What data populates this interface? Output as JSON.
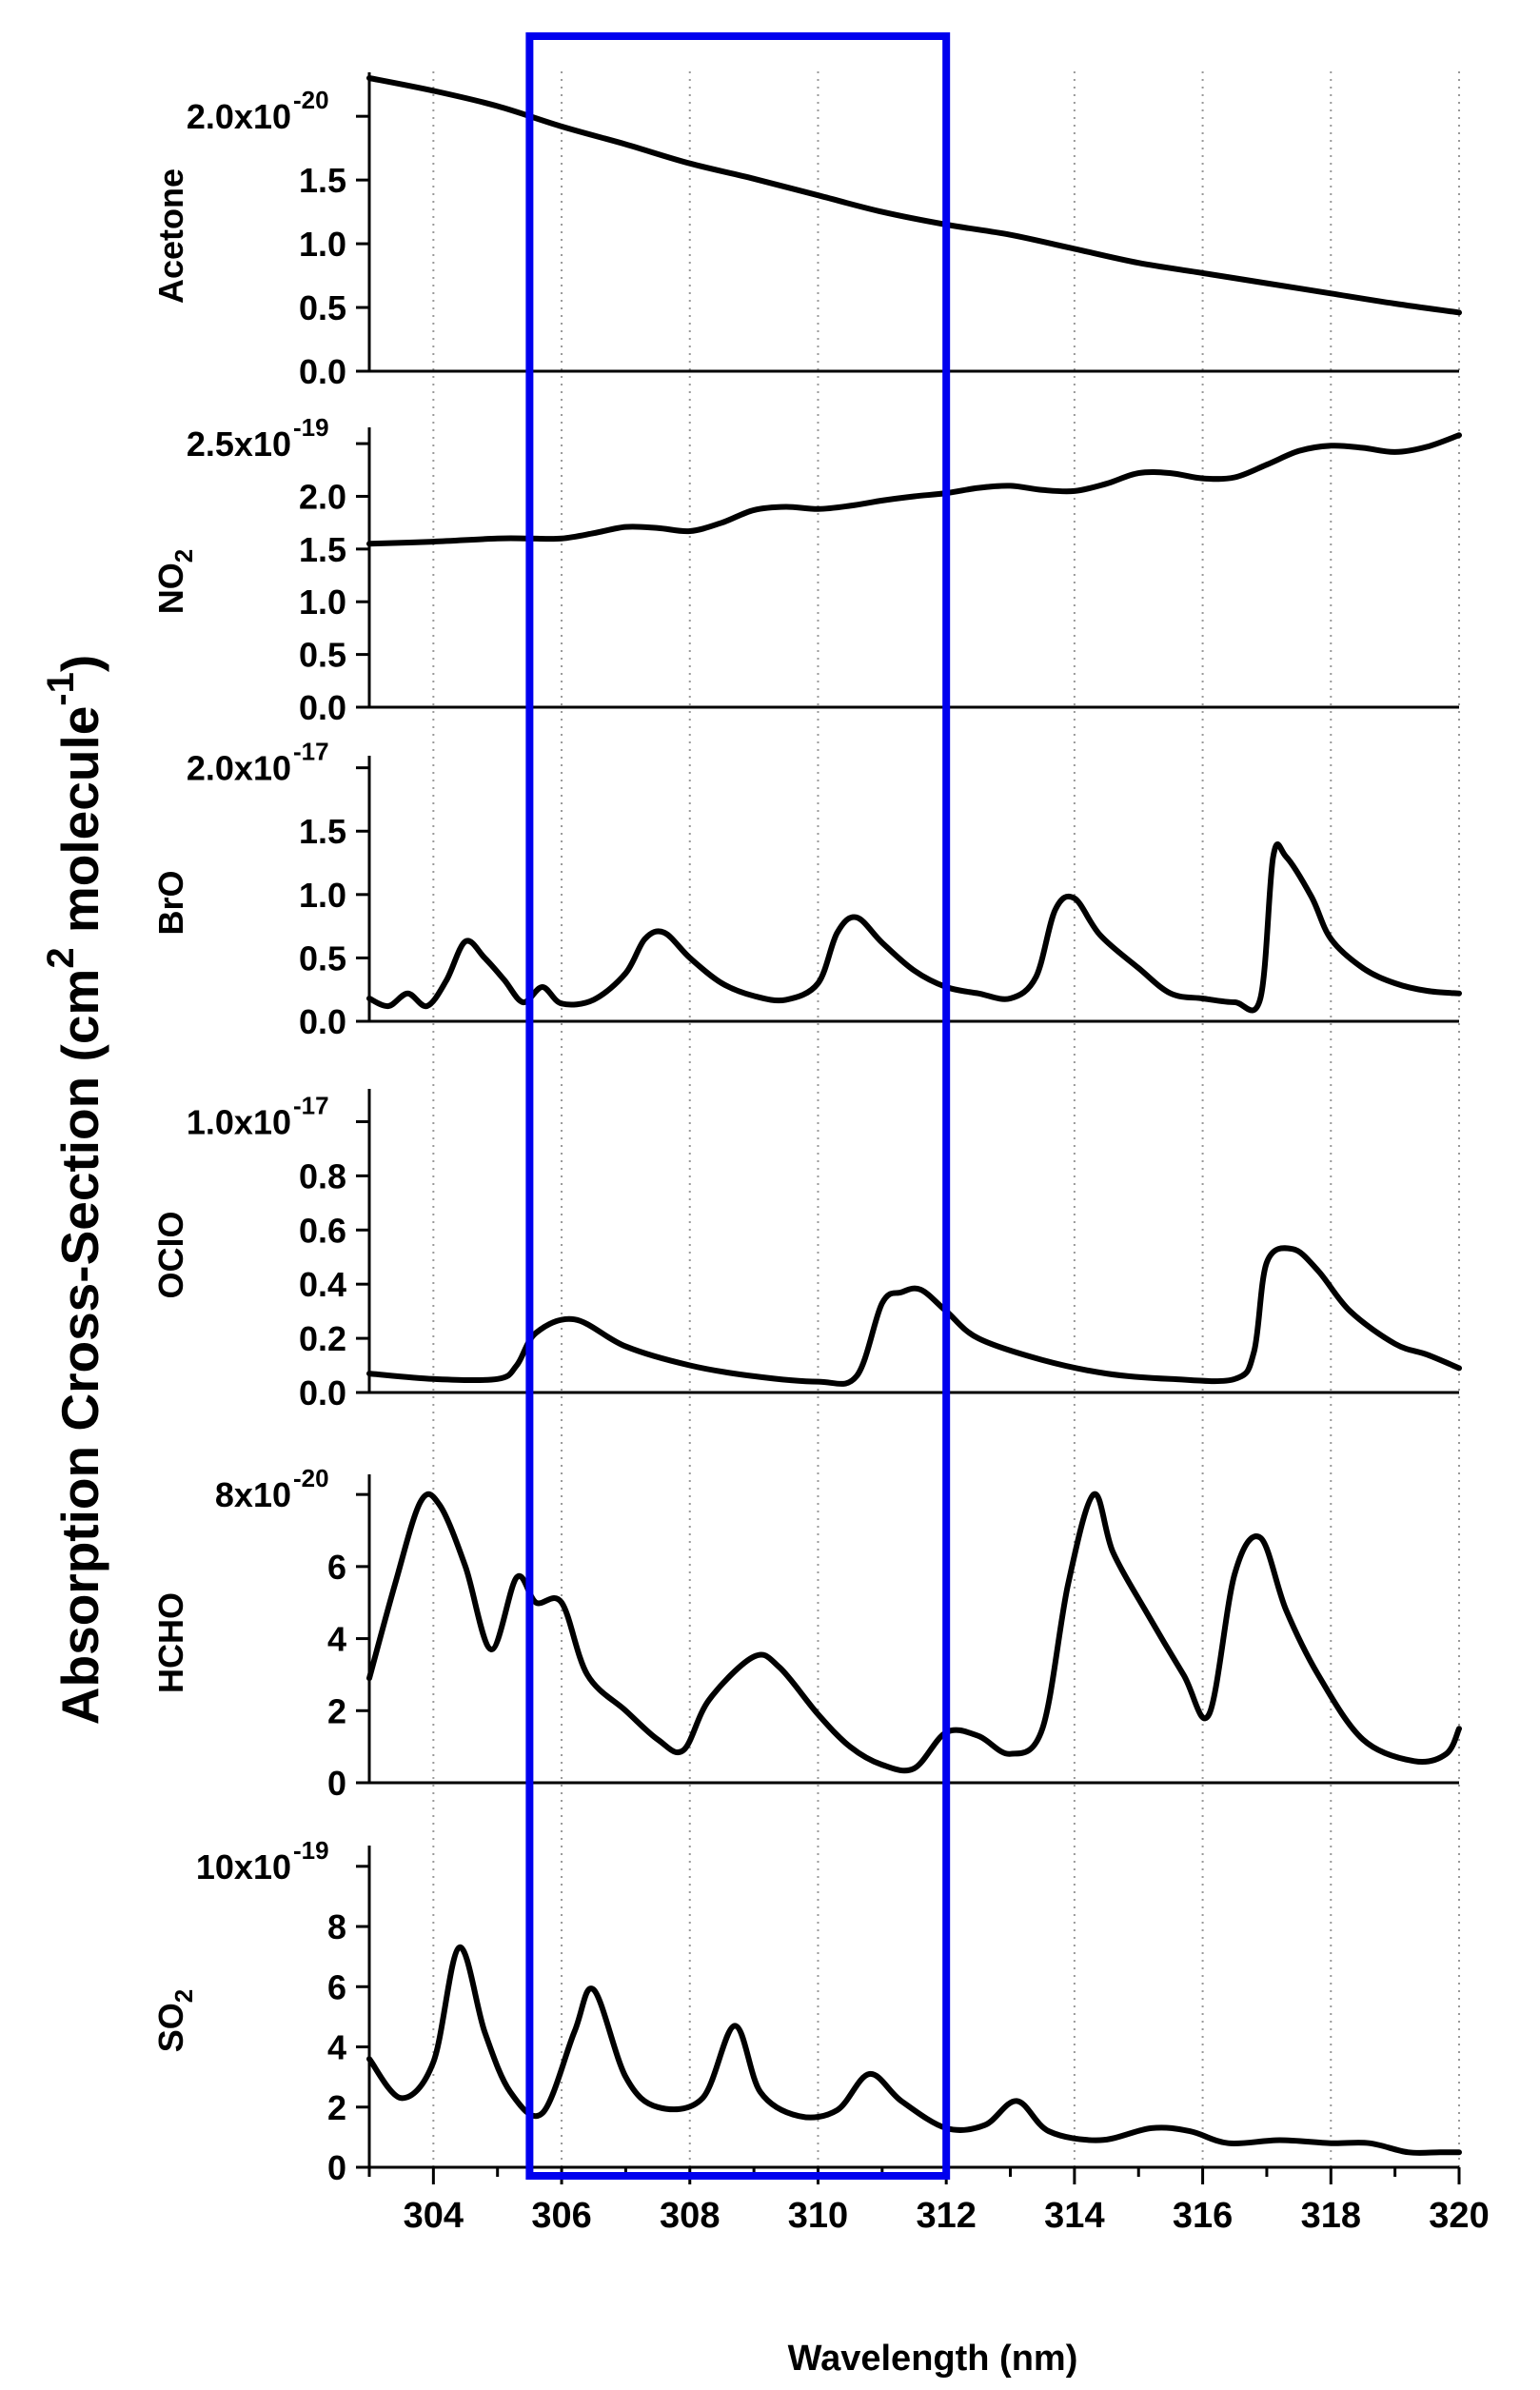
{
  "figure": {
    "ylabel": "Absorption Cross-Section (cm",
    "ylabel_sup1": "2",
    "ylabel_mid": " molecule",
    "ylabel_sup2": "-1",
    "ylabel_end": ")",
    "xlabel": "Wavelength (nm)"
  },
  "chart_data": {
    "type": "line",
    "title": "",
    "xlabel": "Wavelength (nm)",
    "ylabel": "Absorption Cross-Section (cm2 molecule-1)",
    "xlim": [
      303,
      320
    ],
    "xticks": [
      304,
      306,
      308,
      310,
      312,
      314,
      316,
      318,
      320
    ],
    "xtick_labels": [
      "304",
      "306",
      "308",
      "310",
      "312",
      "314",
      "316",
      "318",
      "320"
    ],
    "grid": "vertical dotted",
    "highlight_box": {
      "x_range": [
        305.5,
        312.0
      ],
      "color": "#0000ee"
    },
    "series": [
      {
        "name": "Acetone",
        "label_main": "Acetone",
        "label_sub": "",
        "ylim": [
          0,
          2.3
        ],
        "yticks": [
          0,
          0.5,
          1.0,
          1.5,
          2.0
        ],
        "ytick_labels": [
          "0.0",
          "0.5",
          "1.0",
          "1.5",
          "2.0x10"
        ],
        "exponent": "-20",
        "points": [
          [
            303,
            2.3
          ],
          [
            304,
            2.2
          ],
          [
            305,
            2.08
          ],
          [
            306,
            1.92
          ],
          [
            307,
            1.78
          ],
          [
            308,
            1.63
          ],
          [
            309,
            1.51
          ],
          [
            310,
            1.38
          ],
          [
            311,
            1.25
          ],
          [
            312,
            1.15
          ],
          [
            313,
            1.07
          ],
          [
            314,
            0.96
          ],
          [
            315,
            0.85
          ],
          [
            316,
            0.77
          ],
          [
            317,
            0.69
          ],
          [
            318,
            0.61
          ],
          [
            319,
            0.53
          ],
          [
            320,
            0.46
          ]
        ]
      },
      {
        "name": "NO2",
        "label_main": "NO",
        "label_sub": "2",
        "ylim": [
          0,
          2.6
        ],
        "yticks": [
          0,
          0.5,
          1.0,
          1.5,
          2.0,
          2.5
        ],
        "ytick_labels": [
          "0.0",
          "0.5",
          "1.0",
          "1.5",
          "2.0",
          "2.5x10"
        ],
        "exponent": "-19",
        "points": [
          [
            303,
            1.55
          ],
          [
            304,
            1.57
          ],
          [
            305,
            1.6
          ],
          [
            305.5,
            1.6
          ],
          [
            306,
            1.6
          ],
          [
            306.5,
            1.65
          ],
          [
            307,
            1.71
          ],
          [
            307.5,
            1.7
          ],
          [
            308,
            1.67
          ],
          [
            308.5,
            1.75
          ],
          [
            309,
            1.87
          ],
          [
            309.5,
            1.9
          ],
          [
            310,
            1.88
          ],
          [
            310.5,
            1.91
          ],
          [
            311,
            1.96
          ],
          [
            311.5,
            2.0
          ],
          [
            312,
            2.03
          ],
          [
            312.5,
            2.08
          ],
          [
            313,
            2.1
          ],
          [
            313.5,
            2.06
          ],
          [
            314,
            2.05
          ],
          [
            314.5,
            2.12
          ],
          [
            315,
            2.22
          ],
          [
            315.5,
            2.22
          ],
          [
            316,
            2.17
          ],
          [
            316.5,
            2.18
          ],
          [
            317,
            2.3
          ],
          [
            317.5,
            2.43
          ],
          [
            318,
            2.48
          ],
          [
            318.5,
            2.46
          ],
          [
            319,
            2.42
          ],
          [
            319.5,
            2.47
          ],
          [
            320,
            2.58
          ]
        ]
      },
      {
        "name": "BrO",
        "label_main": "BrO",
        "label_sub": "",
        "ylim": [
          0,
          2.05
        ],
        "yticks": [
          0,
          0.5,
          1.0,
          1.5,
          2.0
        ],
        "ytick_labels": [
          "0.0",
          "0.5",
          "1.0",
          "1.5",
          "2.0x10"
        ],
        "exponent": "-17",
        "points": [
          [
            303,
            0.18
          ],
          [
            303.3,
            0.12
          ],
          [
            303.6,
            0.22
          ],
          [
            303.9,
            0.12
          ],
          [
            304.2,
            0.32
          ],
          [
            304.5,
            0.63
          ],
          [
            304.8,
            0.5
          ],
          [
            305.1,
            0.33
          ],
          [
            305.4,
            0.15
          ],
          [
            305.7,
            0.27
          ],
          [
            306,
            0.14
          ],
          [
            306.5,
            0.17
          ],
          [
            307,
            0.38
          ],
          [
            307.3,
            0.65
          ],
          [
            307.6,
            0.7
          ],
          [
            308,
            0.5
          ],
          [
            308.5,
            0.3
          ],
          [
            309,
            0.2
          ],
          [
            309.5,
            0.17
          ],
          [
            310,
            0.3
          ],
          [
            310.3,
            0.7
          ],
          [
            310.6,
            0.82
          ],
          [
            311,
            0.62
          ],
          [
            311.5,
            0.4
          ],
          [
            312,
            0.27
          ],
          [
            312.5,
            0.22
          ],
          [
            313,
            0.18
          ],
          [
            313.4,
            0.35
          ],
          [
            313.7,
            0.88
          ],
          [
            314,
            0.97
          ],
          [
            314.4,
            0.68
          ],
          [
            315,
            0.42
          ],
          [
            315.5,
            0.22
          ],
          [
            316,
            0.18
          ],
          [
            316.5,
            0.15
          ],
          [
            316.9,
            0.18
          ],
          [
            317.1,
            1.3
          ],
          [
            317.3,
            1.3
          ],
          [
            317.7,
            0.98
          ],
          [
            318,
            0.65
          ],
          [
            318.5,
            0.42
          ],
          [
            319,
            0.3
          ],
          [
            319.5,
            0.24
          ],
          [
            320,
            0.22
          ]
        ]
      },
      {
        "name": "OClO",
        "label_main": "OClO",
        "label_sub": "",
        "ylim": [
          0,
          1.1
        ],
        "yticks": [
          0,
          0.2,
          0.4,
          0.6,
          0.8,
          1.0
        ],
        "ytick_labels": [
          "0.0",
          "0.2",
          "0.4",
          "0.6",
          "0.8",
          "1.0x10"
        ],
        "exponent": "-17",
        "points": [
          [
            303,
            0.07
          ],
          [
            304,
            0.05
          ],
          [
            305,
            0.05
          ],
          [
            305.3,
            0.1
          ],
          [
            305.6,
            0.22
          ],
          [
            306.2,
            0.27
          ],
          [
            307,
            0.17
          ],
          [
            308,
            0.1
          ],
          [
            309,
            0.06
          ],
          [
            310,
            0.04
          ],
          [
            310.6,
            0.06
          ],
          [
            311,
            0.33
          ],
          [
            311.3,
            0.37
          ],
          [
            311.6,
            0.38
          ],
          [
            312,
            0.3
          ],
          [
            312.5,
            0.2
          ],
          [
            313.5,
            0.12
          ],
          [
            314.5,
            0.07
          ],
          [
            315.5,
            0.05
          ],
          [
            316.5,
            0.05
          ],
          [
            316.8,
            0.15
          ],
          [
            317,
            0.48
          ],
          [
            317.4,
            0.53
          ],
          [
            317.8,
            0.45
          ],
          [
            318.3,
            0.3
          ],
          [
            319,
            0.18
          ],
          [
            319.5,
            0.14
          ],
          [
            320,
            0.09
          ]
        ]
      },
      {
        "name": "HCHO",
        "label_main": "HCHO",
        "label_sub": "",
        "ylim": [
          0,
          8.4
        ],
        "yticks": [
          0,
          2,
          4,
          6,
          8
        ],
        "ytick_labels": [
          "0",
          "2",
          "4",
          "6",
          "8x10"
        ],
        "exponent": "-20",
        "points": [
          [
            303,
            2.9
          ],
          [
            303.4,
            5.5
          ],
          [
            303.8,
            7.8
          ],
          [
            304.1,
            7.7
          ],
          [
            304.5,
            6.0
          ],
          [
            304.9,
            3.7
          ],
          [
            305.3,
            5.7
          ],
          [
            305.6,
            5.0
          ],
          [
            306,
            5.0
          ],
          [
            306.4,
            3.0
          ],
          [
            307,
            2.0
          ],
          [
            307.5,
            1.2
          ],
          [
            307.9,
            0.9
          ],
          [
            308.3,
            2.3
          ],
          [
            309,
            3.5
          ],
          [
            309.4,
            3.2
          ],
          [
            310,
            1.9
          ],
          [
            310.5,
            1.0
          ],
          [
            311,
            0.5
          ],
          [
            311.5,
            0.4
          ],
          [
            312,
            1.4
          ],
          [
            312.5,
            1.3
          ],
          [
            313,
            0.8
          ],
          [
            313.5,
            1.5
          ],
          [
            313.9,
            5.5
          ],
          [
            314.3,
            8.0
          ],
          [
            314.6,
            6.4
          ],
          [
            315.1,
            4.8
          ],
          [
            315.7,
            3.0
          ],
          [
            316.1,
            1.9
          ],
          [
            316.5,
            5.8
          ],
          [
            316.9,
            6.8
          ],
          [
            317.3,
            4.8
          ],
          [
            317.8,
            3.0
          ],
          [
            318.5,
            1.2
          ],
          [
            319.3,
            0.6
          ],
          [
            319.8,
            0.8
          ],
          [
            320,
            1.5
          ]
        ]
      },
      {
        "name": "SO2",
        "label_main": "SO",
        "label_sub": "2",
        "ylim": [
          0,
          10.5
        ],
        "yticks": [
          0,
          2,
          4,
          6,
          8,
          10
        ],
        "ytick_labels": [
          "0",
          "2",
          "4",
          "6",
          "8",
          "10x10"
        ],
        "exponent": "-19",
        "points": [
          [
            303,
            3.6
          ],
          [
            303.5,
            2.3
          ],
          [
            304,
            3.5
          ],
          [
            304.4,
            7.3
          ],
          [
            304.8,
            4.5
          ],
          [
            305.2,
            2.5
          ],
          [
            305.7,
            1.8
          ],
          [
            306.2,
            4.5
          ],
          [
            306.5,
            5.9
          ],
          [
            307,
            3.0
          ],
          [
            307.5,
            2.0
          ],
          [
            308.2,
            2.3
          ],
          [
            308.7,
            4.7
          ],
          [
            309.1,
            2.5
          ],
          [
            309.7,
            1.7
          ],
          [
            310.3,
            1.9
          ],
          [
            310.8,
            3.1
          ],
          [
            311.3,
            2.2
          ],
          [
            312,
            1.3
          ],
          [
            312.6,
            1.4
          ],
          [
            313.1,
            2.2
          ],
          [
            313.6,
            1.2
          ],
          [
            314.4,
            0.9
          ],
          [
            315.2,
            1.3
          ],
          [
            315.8,
            1.2
          ],
          [
            316.4,
            0.8
          ],
          [
            317.2,
            0.9
          ],
          [
            318,
            0.8
          ],
          [
            318.6,
            0.8
          ],
          [
            319.2,
            0.5
          ],
          [
            319.7,
            0.5
          ],
          [
            320,
            0.5
          ]
        ]
      }
    ]
  }
}
